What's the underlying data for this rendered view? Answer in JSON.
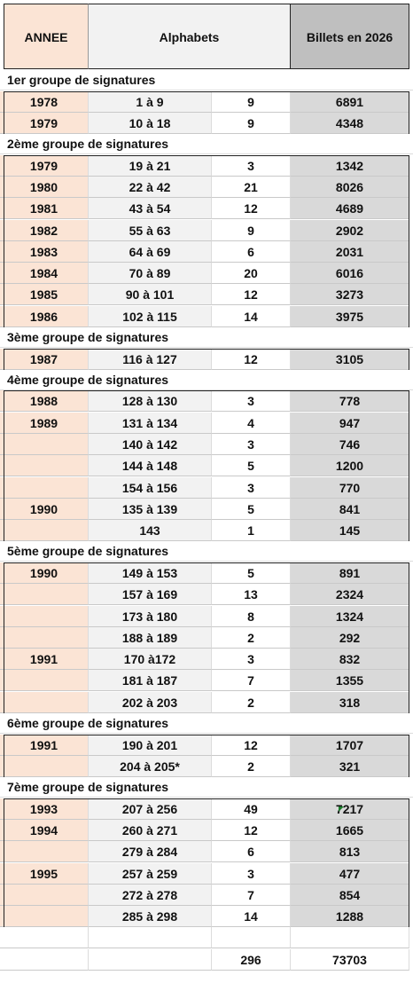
{
  "header": {
    "annee": "ANNEE",
    "alphabets": "Alphabets",
    "billets": "Billets en 2026"
  },
  "groups": [
    {
      "title": "1er groupe de signatures",
      "rows": [
        {
          "annee": "1978",
          "alpha": "1 à 9",
          "count": "9",
          "billets": "6891"
        },
        {
          "annee": "1979",
          "alpha": "10 à 18",
          "count": "9",
          "billets": "4348"
        }
      ]
    },
    {
      "title": "2ème groupe de signatures",
      "rows": [
        {
          "annee": "1979",
          "alpha": "19 à 21",
          "count": "3",
          "billets": "1342"
        },
        {
          "annee": "1980",
          "alpha": "22 à 42",
          "count": "21",
          "billets": "8026"
        },
        {
          "annee": "1981",
          "alpha": "43 à 54",
          "count": "12",
          "billets": "4689"
        },
        {
          "annee": "1982",
          "alpha": "55 à 63",
          "count": "9",
          "billets": "2902"
        },
        {
          "annee": "1983",
          "alpha": "64 à 69",
          "count": "6",
          "billets": "2031"
        },
        {
          "annee": "1984",
          "alpha": "70 à 89",
          "count": "20",
          "billets": "6016"
        },
        {
          "annee": "1985",
          "alpha": "90 à 101",
          "count": "12",
          "billets": "3273"
        },
        {
          "annee": "1986",
          "alpha": "102 à 115",
          "count": "14",
          "billets": "3975"
        }
      ]
    },
    {
      "title": "3ème groupe de signatures",
      "rows": [
        {
          "annee": "1987",
          "alpha": "116 à 127",
          "count": "12",
          "billets": "3105"
        }
      ]
    },
    {
      "title": "4ème groupe de signatures",
      "rows": [
        {
          "annee": "1988",
          "alpha": "128 à 130",
          "count": "3",
          "billets": "778"
        },
        {
          "annee": "1989",
          "alpha": "131 à 134",
          "count": "4",
          "billets": "947"
        },
        {
          "annee": "",
          "alpha": "140 à 142",
          "count": "3",
          "billets": "746"
        },
        {
          "annee": "",
          "alpha": "144 à 148",
          "count": "5",
          "billets": "1200"
        },
        {
          "annee": "",
          "alpha": "154 à 156",
          "count": "3",
          "billets": "770"
        },
        {
          "annee": "1990",
          "alpha": "135 à 139",
          "count": "5",
          "billets": "841"
        },
        {
          "annee": "",
          "alpha": "143",
          "count": "1",
          "billets": "145"
        }
      ]
    },
    {
      "title": "5ème groupe de signatures",
      "rows": [
        {
          "annee": "1990",
          "alpha": "149 à 153",
          "count": "5",
          "billets": "891"
        },
        {
          "annee": "",
          "alpha": "157 à 169",
          "count": "13",
          "billets": "2324"
        },
        {
          "annee": "",
          "alpha": "173 à 180",
          "count": "8",
          "billets": "1324"
        },
        {
          "annee": "",
          "alpha": "188 à 189",
          "count": "2",
          "billets": "292"
        },
        {
          "annee": "1991",
          "alpha": "170 à172",
          "count": "3",
          "billets": "832"
        },
        {
          "annee": "",
          "alpha": "181 à 187",
          "count": "7",
          "billets": "1355"
        },
        {
          "annee": "",
          "alpha": "202 à 203",
          "count": "2",
          "billets": "318"
        }
      ]
    },
    {
      "title": "6ème groupe de signatures",
      "rows": [
        {
          "annee": "1991",
          "alpha": "190 à 201",
          "count": "12",
          "billets": "1707"
        },
        {
          "annee": "",
          "alpha": "204 à 205*",
          "count": "2",
          "billets": "321"
        }
      ]
    },
    {
      "title": "7ème groupe de signatures",
      "rows": [
        {
          "annee": "1993",
          "alpha": "207 à 256",
          "count": "49",
          "billets": "7217"
        },
        {
          "annee": "1994",
          "alpha": "260 à 271",
          "count": "12",
          "billets": "1665"
        },
        {
          "annee": "",
          "alpha": "279 à 284",
          "count": "6",
          "billets": "813"
        },
        {
          "annee": "1995",
          "alpha": "257 à 259",
          "count": "3",
          "billets": "477"
        },
        {
          "annee": "",
          "alpha": "272 à 278",
          "count": "7",
          "billets": "854"
        },
        {
          "annee": "",
          "alpha": "285 à 298",
          "count": "14",
          "billets": "1288"
        }
      ]
    }
  ],
  "totals": {
    "count": "296",
    "billets": "73703"
  }
}
